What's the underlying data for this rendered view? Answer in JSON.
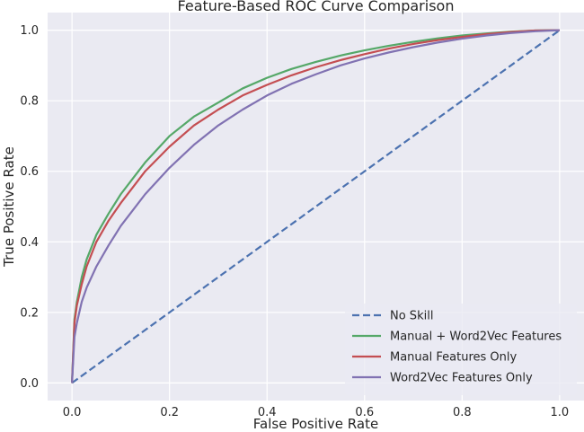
{
  "chart_data": {
    "type": "line",
    "title": "Feature-Based ROC Curve Comparison",
    "xlabel": "False Positive Rate",
    "ylabel": "True Positive Rate",
    "xlim": [
      -0.05,
      1.05
    ],
    "ylim": [
      -0.05,
      1.05
    ],
    "xticks": [
      "0.0",
      "0.2",
      "0.4",
      "0.6",
      "0.8",
      "1.0"
    ],
    "yticks": [
      "0.0",
      "0.2",
      "0.4",
      "0.6",
      "0.8",
      "1.0"
    ],
    "grid": true,
    "legend_position": "lower-right",
    "series": [
      {
        "name": "No Skill",
        "color": "#4c72b0",
        "style": "dashed",
        "x": [
          0,
          1
        ],
        "y": [
          0,
          1
        ]
      },
      {
        "name": "Manual + Word2Vec Features",
        "color": "#55a868",
        "style": "solid",
        "x": [
          0,
          0.005,
          0.01,
          0.02,
          0.03,
          0.05,
          0.075,
          0.1,
          0.125,
          0.15,
          0.2,
          0.25,
          0.3,
          0.35,
          0.4,
          0.45,
          0.5,
          0.55,
          0.6,
          0.65,
          0.7,
          0.75,
          0.8,
          0.85,
          0.9,
          0.95,
          1.0
        ],
        "y": [
          0,
          0.18,
          0.23,
          0.3,
          0.35,
          0.42,
          0.48,
          0.535,
          0.58,
          0.625,
          0.7,
          0.755,
          0.795,
          0.835,
          0.865,
          0.89,
          0.91,
          0.928,
          0.943,
          0.956,
          0.967,
          0.977,
          0.985,
          0.991,
          0.996,
          0.999,
          1.0
        ]
      },
      {
        "name": "Manual Features Only",
        "color": "#c44e52",
        "style": "solid",
        "x": [
          0,
          0.005,
          0.01,
          0.02,
          0.03,
          0.05,
          0.075,
          0.1,
          0.125,
          0.15,
          0.2,
          0.25,
          0.3,
          0.35,
          0.4,
          0.45,
          0.5,
          0.55,
          0.6,
          0.65,
          0.7,
          0.75,
          0.8,
          0.85,
          0.9,
          0.95,
          1.0
        ],
        "y": [
          0,
          0.17,
          0.22,
          0.28,
          0.33,
          0.4,
          0.46,
          0.51,
          0.555,
          0.6,
          0.67,
          0.73,
          0.775,
          0.815,
          0.845,
          0.872,
          0.895,
          0.915,
          0.932,
          0.948,
          0.961,
          0.972,
          0.981,
          0.989,
          0.995,
          0.999,
          1.0
        ]
      },
      {
        "name": "Word2Vec Features Only",
        "color": "#8172b2",
        "style": "solid",
        "x": [
          0,
          0.005,
          0.01,
          0.02,
          0.03,
          0.05,
          0.075,
          0.1,
          0.125,
          0.15,
          0.2,
          0.25,
          0.3,
          0.35,
          0.4,
          0.45,
          0.5,
          0.55,
          0.6,
          0.65,
          0.7,
          0.75,
          0.8,
          0.85,
          0.9,
          0.95,
          1.0
        ],
        "y": [
          0,
          0.13,
          0.17,
          0.23,
          0.27,
          0.33,
          0.39,
          0.445,
          0.49,
          0.535,
          0.61,
          0.675,
          0.73,
          0.775,
          0.815,
          0.848,
          0.875,
          0.9,
          0.92,
          0.937,
          0.952,
          0.965,
          0.976,
          0.985,
          0.992,
          0.997,
          1.0
        ]
      }
    ]
  }
}
